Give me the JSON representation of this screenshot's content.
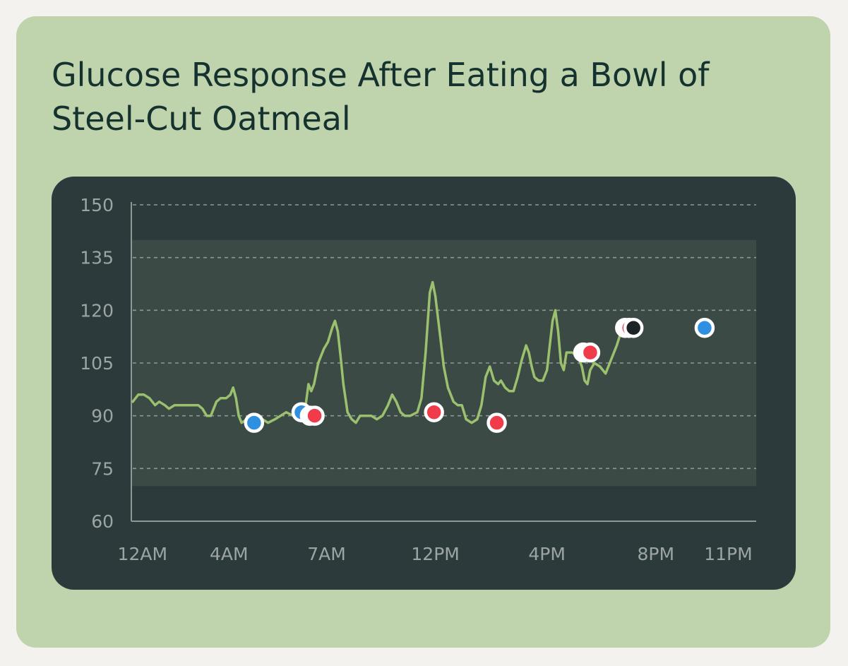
{
  "chart_data": {
    "type": "line",
    "title": "Glucose Response After Eating a Bowl of Steel-Cut Oatmeal",
    "ylim": [
      60,
      150
    ],
    "y_ticks": [
      150,
      135,
      120,
      105,
      90,
      75,
      60
    ],
    "target_range": [
      70,
      140
    ],
    "x_tick_labels": [
      {
        "label": "12AM",
        "hour": 0.0
      },
      {
        "label": "4AM",
        "hour": 3.1
      },
      {
        "label": "7AM",
        "hour": 6.6
      },
      {
        "label": "12PM",
        "hour": 10.5
      },
      {
        "label": "4PM",
        "hour": 14.5
      },
      {
        "label": "8PM",
        "hour": 18.4
      },
      {
        "label": "11PM",
        "hour": 21.0
      }
    ],
    "xlim": [
      -0.4,
      22.0
    ],
    "grid": "dashed horizontal",
    "series": [
      {
        "color": "#9cc16e",
        "points": [
          [
            -0.35,
            94
          ],
          [
            -0.15,
            96
          ],
          [
            0.05,
            96
          ],
          [
            0.25,
            95
          ],
          [
            0.45,
            93
          ],
          [
            0.6,
            94
          ],
          [
            0.8,
            93
          ],
          [
            0.95,
            92
          ],
          [
            1.15,
            93
          ],
          [
            1.4,
            93
          ],
          [
            1.7,
            93
          ],
          [
            2.0,
            93
          ],
          [
            2.15,
            92
          ],
          [
            2.3,
            90
          ],
          [
            2.45,
            90
          ],
          [
            2.65,
            94
          ],
          [
            2.8,
            95
          ],
          [
            3.0,
            95
          ],
          [
            3.15,
            96
          ],
          [
            3.25,
            98
          ],
          [
            3.35,
            95
          ],
          [
            3.45,
            90
          ],
          [
            3.55,
            88
          ],
          [
            3.75,
            89
          ],
          [
            4.0,
            90
          ],
          [
            4.3,
            89
          ],
          [
            4.5,
            88
          ],
          [
            4.75,
            89
          ],
          [
            4.95,
            90
          ],
          [
            5.15,
            91
          ],
          [
            5.4,
            90
          ],
          [
            5.6,
            90
          ],
          [
            5.75,
            90
          ],
          [
            5.85,
            93
          ],
          [
            5.95,
            99
          ],
          [
            6.05,
            97
          ],
          [
            6.15,
            99
          ],
          [
            6.3,
            105
          ],
          [
            6.5,
            109
          ],
          [
            6.65,
            111
          ],
          [
            6.8,
            115
          ],
          [
            6.9,
            117
          ],
          [
            7.0,
            114
          ],
          [
            7.1,
            107
          ],
          [
            7.2,
            99
          ],
          [
            7.35,
            91
          ],
          [
            7.5,
            89
          ],
          [
            7.65,
            88
          ],
          [
            7.8,
            90
          ],
          [
            8.0,
            90
          ],
          [
            8.2,
            90
          ],
          [
            8.4,
            89
          ],
          [
            8.6,
            90
          ],
          [
            8.8,
            93
          ],
          [
            8.95,
            96
          ],
          [
            9.1,
            94
          ],
          [
            9.25,
            91
          ],
          [
            9.4,
            90
          ],
          [
            9.6,
            90
          ],
          [
            9.85,
            91
          ],
          [
            10.0,
            95
          ],
          [
            10.15,
            108
          ],
          [
            10.3,
            125
          ],
          [
            10.4,
            128
          ],
          [
            10.5,
            124
          ],
          [
            10.65,
            114
          ],
          [
            10.8,
            104
          ],
          [
            10.95,
            98
          ],
          [
            11.15,
            94
          ],
          [
            11.3,
            93
          ],
          [
            11.45,
            93
          ],
          [
            11.6,
            89
          ],
          [
            11.8,
            88
          ],
          [
            12.0,
            89
          ],
          [
            12.15,
            93
          ],
          [
            12.3,
            101
          ],
          [
            12.45,
            104
          ],
          [
            12.6,
            100
          ],
          [
            12.75,
            99
          ],
          [
            12.85,
            100
          ],
          [
            13.0,
            98
          ],
          [
            13.15,
            97
          ],
          [
            13.3,
            97
          ],
          [
            13.45,
            101
          ],
          [
            13.6,
            106
          ],
          [
            13.75,
            110
          ],
          [
            13.85,
            108
          ],
          [
            13.95,
            104
          ],
          [
            14.05,
            101
          ],
          [
            14.2,
            100
          ],
          [
            14.35,
            100
          ],
          [
            14.5,
            103
          ],
          [
            14.6,
            110
          ],
          [
            14.7,
            117
          ],
          [
            14.8,
            120
          ],
          [
            14.9,
            114
          ],
          [
            15.0,
            105
          ],
          [
            15.1,
            103
          ],
          [
            15.2,
            108
          ],
          [
            15.4,
            108
          ],
          [
            15.6,
            107
          ],
          [
            15.75,
            104
          ],
          [
            15.85,
            100
          ],
          [
            15.95,
            99
          ],
          [
            16.05,
            103
          ],
          [
            16.2,
            105
          ],
          [
            16.4,
            104
          ],
          [
            16.6,
            102
          ],
          [
            16.8,
            106
          ],
          [
            17.0,
            110
          ],
          [
            17.2,
            115
          ]
        ]
      }
    ],
    "markers": [
      {
        "hour": 4.0,
        "value": 88,
        "color": "#2f8fe0"
      },
      {
        "hour": 5.7,
        "value": 91,
        "color": "#2f8fe0"
      },
      {
        "hour": 6.0,
        "value": 90,
        "color": "#ffffff"
      },
      {
        "hour": 6.17,
        "value": 90,
        "color": "#ef3b4a"
      },
      {
        "hour": 10.45,
        "value": 91,
        "color": "#ef3b4a"
      },
      {
        "hour": 12.7,
        "value": 88,
        "color": "#ef3b4a"
      },
      {
        "hour": 15.8,
        "value": 108,
        "color": "#ffffff"
      },
      {
        "hour": 16.05,
        "value": 108,
        "color": "#ef3b4a"
      },
      {
        "hour": 17.3,
        "value": 115,
        "color": "#ffffff"
      },
      {
        "hour": 17.45,
        "value": 115,
        "color": "#ef3b4a"
      },
      {
        "hour": 17.6,
        "value": 115,
        "color": "#1b2324"
      },
      {
        "hour": 20.15,
        "value": 115,
        "color": "#2f8fe0"
      }
    ]
  }
}
